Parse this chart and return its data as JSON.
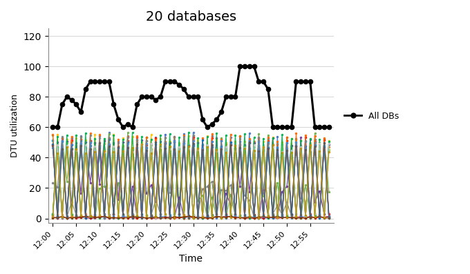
{
  "title": "20 databases",
  "xlabel": "Time",
  "ylabel": "DTU utilization",
  "ylim": [
    -3,
    125
  ],
  "yticks": [
    0,
    20,
    40,
    60,
    80,
    100,
    120
  ],
  "time_labels": [
    "12:00",
    "12:05",
    "12:10",
    "12:15",
    "12:20",
    "12:25",
    "12:30",
    "12:35",
    "12:40",
    "12:45",
    "12:50",
    "12:55"
  ],
  "tick_positions": [
    0,
    5,
    10,
    15,
    20,
    25,
    30,
    35,
    40,
    45,
    50,
    55
  ],
  "all_dbs_values": [
    60,
    60,
    75,
    80,
    78,
    75,
    70,
    85,
    90,
    90,
    90,
    90,
    90,
    75,
    65,
    60,
    62,
    60,
    75,
    80,
    80,
    80,
    78,
    80,
    90,
    90,
    90,
    88,
    85,
    80,
    80,
    80,
    65,
    60,
    62,
    65,
    70,
    80,
    80,
    80,
    100,
    100,
    100,
    100,
    90,
    90,
    85,
    60,
    60,
    60,
    60,
    60,
    90,
    90,
    90,
    90,
    60,
    60,
    60,
    60
  ],
  "db_colors": [
    "#4472C4",
    "#ED7D31",
    "#70AD47",
    "#FFC000",
    "#5B9BD5",
    "#A9D18E",
    "#FF0000",
    "#7030A0",
    "#00B0F0",
    "#92D050",
    "#FF6600",
    "#C00000",
    "#0070C0",
    "#00B050",
    "#7F7F7F",
    "#C9C9C9",
    "#4A86C8",
    "#833C00",
    "#595959",
    "#BF8F00"
  ],
  "n_dbs": 20,
  "n_timepoints": 60,
  "high_val": 50,
  "legend_label": "All DBs",
  "background_color": "#ffffff",
  "figsize": [
    6.8,
    3.97
  ],
  "dpi": 100
}
